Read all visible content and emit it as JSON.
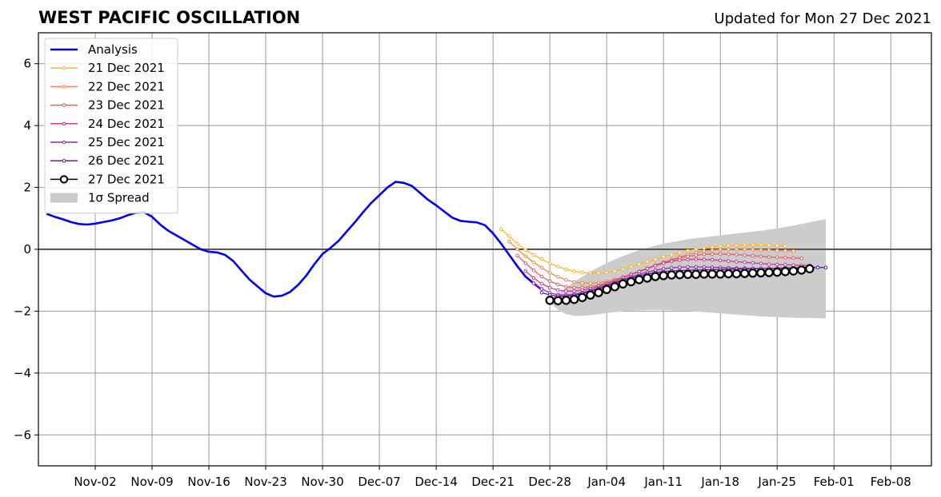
{
  "title": "WEST PACIFIC OSCILLATION",
  "subtitle": "Updated for Mon 27 Dec 2021",
  "chart_data": {
    "type": "line",
    "title": "WEST PACIFIC OSCILLATION",
    "subtitle": "Updated for Mon 27 Dec 2021",
    "x_axis": {
      "type": "date",
      "range": [
        "2021-10-26",
        "2022-02-13"
      ],
      "tick_labels": [
        "Nov-02",
        "Nov-09",
        "Nov-16",
        "Nov-23",
        "Nov-30",
        "Dec-07",
        "Dec-14",
        "Dec-21",
        "Dec-28",
        "Jan-04",
        "Jan-11",
        "Jan-18",
        "Jan-25",
        "Feb-01",
        "Feb-08"
      ],
      "tick_dates": [
        "2021-11-02",
        "2021-11-09",
        "2021-11-16",
        "2021-11-23",
        "2021-11-30",
        "2021-12-07",
        "2021-12-14",
        "2021-12-21",
        "2021-12-28",
        "2022-01-04",
        "2022-01-11",
        "2022-01-18",
        "2022-01-25",
        "2022-02-01",
        "2022-02-08"
      ]
    },
    "y_axis": {
      "range": [
        -7,
        7
      ],
      "ticks": [
        -6,
        -4,
        -2,
        0,
        2,
        4,
        6
      ],
      "tick_labels": [
        "−6",
        "−4",
        "−2",
        "0",
        "2",
        "4",
        "6"
      ]
    },
    "grid": true,
    "legend_position": "top-left",
    "colors": {
      "analysis": "#0000ee",
      "spread": "#cccccc",
      "zero_line": "#555555",
      "grid": "#999999"
    },
    "analysis": {
      "name": "Analysis",
      "color": "#0000ee",
      "points": [
        [
          "2021-10-27",
          1.15
        ],
        [
          "2021-10-28",
          1.05
        ],
        [
          "2021-10-29",
          0.97
        ],
        [
          "2021-10-30",
          0.88
        ],
        [
          "2021-10-31",
          0.82
        ],
        [
          "2021-11-01",
          0.8
        ],
        [
          "2021-11-02",
          0.83
        ],
        [
          "2021-11-03",
          0.88
        ],
        [
          "2021-11-04",
          0.93
        ],
        [
          "2021-11-05",
          1.0
        ],
        [
          "2021-11-06",
          1.1
        ],
        [
          "2021-11-07",
          1.18
        ],
        [
          "2021-11-08",
          1.2
        ],
        [
          "2021-11-09",
          1.05
        ],
        [
          "2021-11-10",
          0.8
        ],
        [
          "2021-11-11",
          0.6
        ],
        [
          "2021-11-12",
          0.45
        ],
        [
          "2021-11-13",
          0.3
        ],
        [
          "2021-11-14",
          0.15
        ],
        [
          "2021-11-15",
          0.0
        ],
        [
          "2021-11-16",
          -0.08
        ],
        [
          "2021-11-17",
          -0.1
        ],
        [
          "2021-11-18",
          -0.18
        ],
        [
          "2021-11-19",
          -0.38
        ],
        [
          "2021-11-20",
          -0.68
        ],
        [
          "2021-11-21",
          -0.98
        ],
        [
          "2021-11-22",
          -1.2
        ],
        [
          "2021-11-23",
          -1.42
        ],
        [
          "2021-11-24",
          -1.53
        ],
        [
          "2021-11-25",
          -1.5
        ],
        [
          "2021-11-26",
          -1.38
        ],
        [
          "2021-11-27",
          -1.15
        ],
        [
          "2021-11-28",
          -0.85
        ],
        [
          "2021-11-29",
          -0.48
        ],
        [
          "2021-11-30",
          -0.15
        ],
        [
          "2021-12-01",
          0.05
        ],
        [
          "2021-12-02",
          0.28
        ],
        [
          "2021-12-03",
          0.58
        ],
        [
          "2021-12-04",
          0.88
        ],
        [
          "2021-12-05",
          1.2
        ],
        [
          "2021-12-06",
          1.5
        ],
        [
          "2021-12-07",
          1.75
        ],
        [
          "2021-12-08",
          2.0
        ],
        [
          "2021-12-09",
          2.18
        ],
        [
          "2021-12-10",
          2.15
        ],
        [
          "2021-12-11",
          2.05
        ],
        [
          "2021-12-12",
          1.83
        ],
        [
          "2021-12-13",
          1.6
        ],
        [
          "2021-12-14",
          1.42
        ],
        [
          "2021-12-15",
          1.22
        ],
        [
          "2021-12-16",
          1.02
        ],
        [
          "2021-12-17",
          0.92
        ],
        [
          "2021-12-18",
          0.89
        ],
        [
          "2021-12-19",
          0.87
        ],
        [
          "2021-12-20",
          0.78
        ],
        [
          "2021-12-21",
          0.52
        ],
        [
          "2021-12-22",
          0.18
        ],
        [
          "2021-12-23",
          -0.18
        ],
        [
          "2021-12-24",
          -0.55
        ],
        [
          "2021-12-25",
          -0.88
        ],
        [
          "2021-12-26",
          -1.1
        ],
        [
          "2021-12-27",
          -1.3
        ]
      ]
    },
    "forecasts": [
      {
        "name": "21 Dec 2021",
        "color": "#fdb827",
        "start": "2021-12-22",
        "values": [
          0.65,
          0.42,
          0.18,
          -0.02,
          -0.18,
          -0.32,
          -0.45,
          -0.56,
          -0.65,
          -0.71,
          -0.75,
          -0.77,
          -0.77,
          -0.75,
          -0.7,
          -0.64,
          -0.56,
          -0.48,
          -0.4,
          -0.32,
          -0.24,
          -0.17,
          -0.11,
          -0.05,
          0.0,
          0.04,
          0.07,
          0.1,
          0.12,
          0.13,
          0.14,
          0.14,
          0.14,
          0.13,
          0.12,
          0.11
        ]
      },
      {
        "name": "22 Dec 2021",
        "color": "#f08a4b",
        "start": "2021-12-23",
        "values": [
          0.25,
          0.0,
          -0.22,
          -0.42,
          -0.6,
          -0.76,
          -0.89,
          -0.99,
          -1.06,
          -1.09,
          -1.1,
          -1.08,
          -1.04,
          -0.97,
          -0.89,
          -0.8,
          -0.71,
          -0.61,
          -0.51,
          -0.42,
          -0.33,
          -0.25,
          -0.17,
          -0.11,
          -0.06,
          -0.03,
          -0.01,
          0.0,
          0.0,
          0.0,
          -0.01,
          -0.02,
          -0.03,
          -0.04,
          -0.05,
          -0.06
        ]
      },
      {
        "name": "23 Dec 2021",
        "color": "#e0606a",
        "start": "2021-12-24",
        "values": [
          -0.2,
          -0.45,
          -0.68,
          -0.88,
          -1.03,
          -1.14,
          -1.21,
          -1.24,
          -1.24,
          -1.21,
          -1.16,
          -1.09,
          -1.01,
          -0.92,
          -0.82,
          -0.72,
          -0.62,
          -0.52,
          -0.43,
          -0.35,
          -0.28,
          -0.23,
          -0.19,
          -0.16,
          -0.15,
          -0.15,
          -0.16,
          -0.17,
          -0.19,
          -0.21,
          -0.23,
          -0.25,
          -0.26,
          -0.27,
          -0.28,
          -0.29
        ]
      },
      {
        "name": "24 Dec 2021",
        "color": "#c73b8f",
        "start": "2021-12-25",
        "values": [
          -0.7,
          -0.93,
          -1.11,
          -1.24,
          -1.32,
          -1.35,
          -1.35,
          -1.32,
          -1.27,
          -1.2,
          -1.11,
          -1.02,
          -0.92,
          -0.82,
          -0.72,
          -0.62,
          -0.53,
          -0.45,
          -0.39,
          -0.35,
          -0.33,
          -0.32,
          -0.33,
          -0.34,
          -0.36,
          -0.38,
          -0.4,
          -0.42,
          -0.44,
          -0.46,
          -0.48,
          -0.49,
          -0.5,
          -0.51,
          -0.52,
          -0.52
        ]
      },
      {
        "name": "25 Dec 2021",
        "color": "#9c27b0",
        "start": "2021-12-26",
        "values": [
          -1.1,
          -1.28,
          -1.41,
          -1.47,
          -1.48,
          -1.45,
          -1.4,
          -1.33,
          -1.25,
          -1.16,
          -1.07,
          -0.98,
          -0.89,
          -0.81,
          -0.74,
          -0.68,
          -0.63,
          -0.6,
          -0.58,
          -0.57,
          -0.57,
          -0.57,
          -0.58,
          -0.59,
          -0.6,
          -0.61,
          -0.61,
          -0.62,
          -0.62,
          -0.62,
          -0.61,
          -0.6,
          -0.6,
          -0.59,
          -0.58,
          -0.58
        ]
      },
      {
        "name": "26 Dec 2021",
        "color": "#5e1fa6",
        "start": "2021-12-27",
        "values": [
          -1.4,
          -1.48,
          -1.52,
          -1.52,
          -1.49,
          -1.43,
          -1.36,
          -1.28,
          -1.19,
          -1.1,
          -1.01,
          -0.93,
          -0.86,
          -0.8,
          -0.75,
          -0.72,
          -0.7,
          -0.69,
          -0.68,
          -0.67,
          -0.66,
          -0.66,
          -0.65,
          -0.65,
          -0.64,
          -0.64,
          -0.63,
          -0.63,
          -0.62,
          -0.62,
          -0.61,
          -0.61,
          -0.6,
          -0.6,
          -0.59,
          -0.59
        ]
      },
      {
        "name": "27 Dec 2021",
        "color": "#000000",
        "marker": "open-circle",
        "start": "2021-12-28",
        "values": [
          -1.65,
          -1.66,
          -1.65,
          -1.62,
          -1.56,
          -1.48,
          -1.4,
          -1.3,
          -1.21,
          -1.12,
          -1.05,
          -0.98,
          -0.93,
          -0.88,
          -0.85,
          -0.83,
          -0.82,
          -0.81,
          -0.81,
          -0.8,
          -0.8,
          -0.8,
          -0.79,
          -0.79,
          -0.78,
          -0.77,
          -0.76,
          -0.75,
          -0.74,
          -0.72,
          -0.7,
          -0.67,
          -0.63
        ]
      }
    ],
    "spread": {
      "name": "1σ Spread",
      "color": "#cccccc",
      "start": "2021-12-28",
      "upper": [
        -1.6,
        -1.42,
        -1.25,
        -1.05,
        -0.88,
        -0.72,
        -0.58,
        -0.45,
        -0.33,
        -0.22,
        -0.12,
        -0.03,
        0.05,
        0.12,
        0.18,
        0.23,
        0.28,
        0.32,
        0.36,
        0.39,
        0.42,
        0.45,
        0.48,
        0.51,
        0.54,
        0.57,
        0.6,
        0.64,
        0.68,
        0.72,
        0.77,
        0.82,
        0.87,
        0.93,
        0.98
      ],
      "lower": [
        -1.72,
        -1.95,
        -2.1,
        -2.15,
        -2.15,
        -2.13,
        -2.1,
        -2.06,
        -2.03,
        -2.0,
        -1.98,
        -1.97,
        -1.96,
        -1.96,
        -1.96,
        -1.97,
        -1.98,
        -1.99,
        -2.01,
        -2.03,
        -2.05,
        -2.07,
        -2.09,
        -2.11,
        -2.13,
        -2.15,
        -2.17,
        -2.18,
        -2.19,
        -2.2,
        -2.21,
        -2.22,
        -2.22,
        -2.23,
        -2.23
      ]
    }
  }
}
